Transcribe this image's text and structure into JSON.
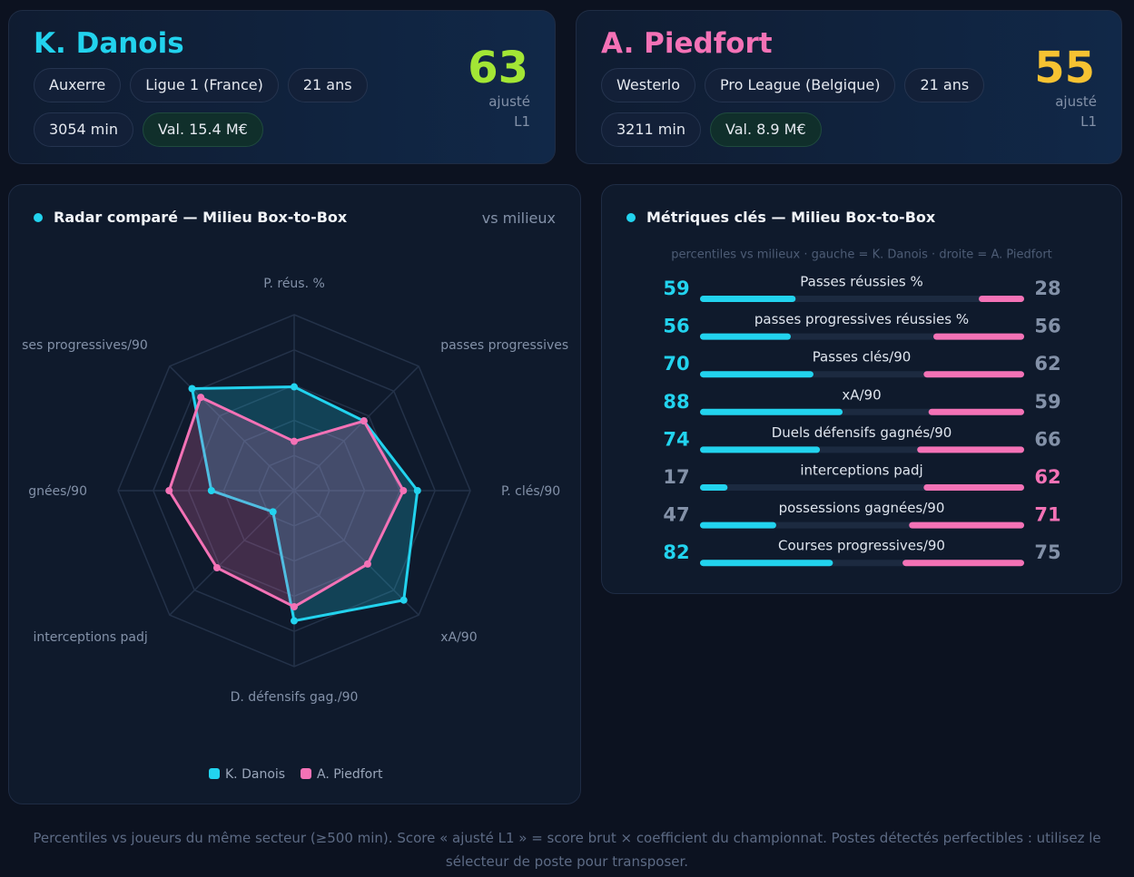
{
  "players": [
    {
      "name": "K. Danois",
      "color": "#22d3ee",
      "tags": [
        "Auxerre",
        "Ligue 1 (France)",
        "21 ans",
        "3054 min"
      ],
      "value_tag": "Val. 15.4 M€",
      "score": 63,
      "score_color": "#a3e635",
      "score_label": "ajusté",
      "score_sub": "L1"
    },
    {
      "name": "A. Piedfort",
      "color": "#f472b6",
      "tags": [
        "Westerlo",
        "Pro League (Belgique)",
        "21 ans",
        "3211 min"
      ],
      "value_tag": "Val. 8.9 M€",
      "score": 55,
      "score_color": "#f6c232",
      "score_label": "ajusté",
      "score_sub": "L1"
    }
  ],
  "radar": {
    "type": "radar",
    "title": "Radar comparé — Milieu Box-to-Box",
    "subtitle": "vs milieux",
    "axes": [
      "P. réus. %",
      "passes progressives",
      "P. clés/90",
      "xA/90",
      "D. défensifs gag./90",
      "interceptions padj",
      "gnées/90",
      "ses progressives/90"
    ],
    "rlim": [
      0,
      100
    ],
    "rings": [
      20,
      40,
      60,
      80,
      100
    ],
    "series": [
      {
        "name": "K. Danois",
        "color": "#22d3ee",
        "values": [
          59,
          56,
          70,
          88,
          74,
          17,
          47,
          82
        ]
      },
      {
        "name": "A. Piedfort",
        "color": "#f472b6",
        "values": [
          28,
          56,
          62,
          59,
          66,
          62,
          71,
          75
        ]
      }
    ]
  },
  "metrics": {
    "title": "Métriques clés — Milieu Box-to-Box",
    "subtitle": "percentiles vs milieux · gauche = K. Danois · droite = A. Piedfort",
    "xlim": [
      0,
      100
    ],
    "rows": [
      {
        "label": "Passes réussies %",
        "left": 59,
        "right": 28
      },
      {
        "label": "passes progressives réussies %",
        "left": 56,
        "right": 56
      },
      {
        "label": "Passes clés/90",
        "left": 70,
        "right": 62
      },
      {
        "label": "xA/90",
        "left": 88,
        "right": 59
      },
      {
        "label": "Duels défensifs gagnés/90",
        "left": 74,
        "right": 66
      },
      {
        "label": "interceptions padj",
        "left": 17,
        "right": 62
      },
      {
        "label": "possessions gagnées/90",
        "left": 47,
        "right": 71
      },
      {
        "label": "Courses progressives/90",
        "left": 82,
        "right": 75
      }
    ]
  },
  "footer": "Percentiles vs joueurs du même secteur (≥500 min). Score « ajusté L1 » = score brut × coefficient du championnat. Postes détectés perfectibles : utilisez le sélecteur de poste pour transposer."
}
